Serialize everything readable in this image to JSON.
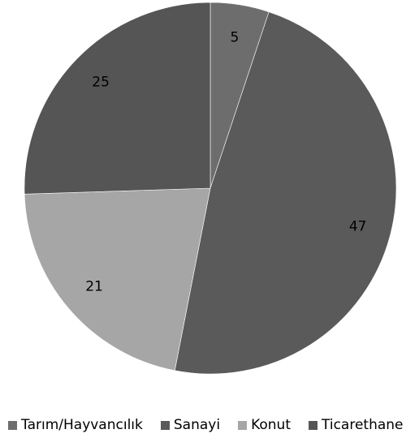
{
  "chart_data": {
    "type": "pie",
    "categories": [
      "Tarım/Hayvancılık",
      "Sanayi",
      "Konut",
      "Ticarethane"
    ],
    "values": [
      5,
      47,
      21,
      25
    ],
    "data_labels": [
      "5",
      "47",
      "21",
      "25"
    ],
    "colors": [
      "#6d6d6d",
      "#5a5a5a",
      "#a6a6a6",
      "#555555"
    ],
    "legend_position": "bottom",
    "start_angle_deg": 0,
    "direction": "clockwise"
  }
}
